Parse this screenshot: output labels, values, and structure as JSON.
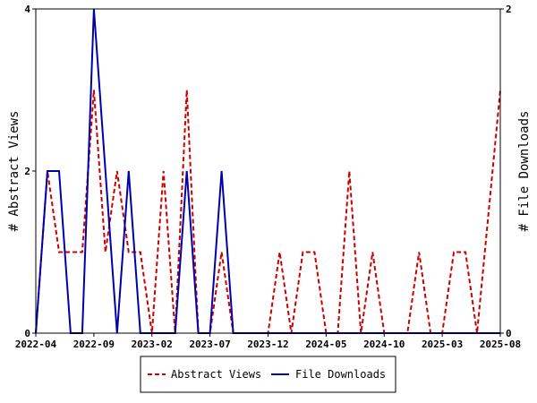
{
  "chart_data": {
    "type": "line",
    "x_tick_labels": [
      "2022-04",
      "2022-09",
      "2023-02",
      "2023-07",
      "2023-12",
      "2024-05",
      "2024-10",
      "2025-03",
      "2025-08"
    ],
    "left_axis": {
      "label": "# Abstract Views",
      "range": [
        0,
        4
      ],
      "ticks": [
        "0",
        "2",
        "4"
      ]
    },
    "right_axis": {
      "label": "# File Downloads",
      "range": [
        0,
        2
      ],
      "ticks": [
        "0",
        "2"
      ]
    },
    "grid": false,
    "legend_position": "bottom",
    "series": [
      {
        "name": "Abstract Views",
        "axis": "left",
        "color": "#cc0000",
        "dash": true,
        "points": [
          [
            "2022-04",
            0
          ],
          [
            "2022-05",
            2
          ],
          [
            "2022-06",
            1
          ],
          [
            "2022-07",
            1
          ],
          [
            "2022-08",
            1
          ],
          [
            "2022-09",
            3
          ],
          [
            "2022-10",
            1
          ],
          [
            "2022-11",
            2
          ],
          [
            "2022-12",
            1
          ],
          [
            "2023-01",
            1
          ],
          [
            "2023-02",
            0
          ],
          [
            "2023-03",
            2
          ],
          [
            "2023-04",
            0
          ],
          [
            "2023-05",
            3
          ],
          [
            "2023-06",
            0
          ],
          [
            "2023-07",
            0
          ],
          [
            "2023-08",
            1
          ],
          [
            "2023-09",
            0
          ],
          [
            "2023-10",
            0
          ],
          [
            "2023-11",
            0
          ],
          [
            "2023-12",
            0
          ],
          [
            "2024-01",
            1
          ],
          [
            "2024-02",
            0
          ],
          [
            "2024-03",
            1
          ],
          [
            "2024-04",
            1
          ],
          [
            "2024-05",
            0
          ],
          [
            "2024-06",
            0
          ],
          [
            "2024-07",
            2
          ],
          [
            "2024-08",
            0
          ],
          [
            "2024-09",
            1
          ],
          [
            "2024-10",
            0
          ],
          [
            "2024-11",
            0
          ],
          [
            "2024-12",
            0
          ],
          [
            "2025-01",
            1
          ],
          [
            "2025-02",
            0
          ],
          [
            "2025-03",
            0
          ],
          [
            "2025-04",
            1
          ],
          [
            "2025-05",
            1
          ],
          [
            "2025-06",
            0
          ],
          [
            "2025-08",
            3
          ]
        ]
      },
      {
        "name": "File Downloads",
        "axis": "right",
        "color": "#0000aa",
        "dash": false,
        "points": [
          [
            "2022-04",
            0
          ],
          [
            "2022-05",
            1
          ],
          [
            "2022-06",
            1
          ],
          [
            "2022-07",
            0
          ],
          [
            "2022-08",
            0
          ],
          [
            "2022-09",
            2
          ],
          [
            "2022-10",
            1
          ],
          [
            "2022-11",
            0
          ],
          [
            "2022-12",
            1
          ],
          [
            "2023-01",
            0
          ],
          [
            "2023-02",
            0
          ],
          [
            "2023-03",
            0
          ],
          [
            "2023-04",
            0
          ],
          [
            "2023-05",
            1
          ],
          [
            "2023-06",
            0
          ],
          [
            "2023-07",
            0
          ],
          [
            "2023-08",
            1
          ],
          [
            "2023-09",
            0
          ],
          [
            "2023-10",
            0
          ],
          [
            "2023-11",
            0
          ],
          [
            "2023-12",
            0
          ],
          [
            "2024-01",
            0
          ],
          [
            "2024-02",
            0
          ],
          [
            "2024-03",
            0
          ],
          [
            "2024-04",
            0
          ],
          [
            "2024-05",
            0
          ],
          [
            "2024-06",
            0
          ],
          [
            "2024-07",
            0
          ],
          [
            "2024-08",
            0
          ],
          [
            "2024-09",
            0
          ],
          [
            "2024-10",
            0
          ],
          [
            "2024-11",
            0
          ],
          [
            "2024-12",
            0
          ],
          [
            "2025-01",
            0
          ],
          [
            "2025-02",
            0
          ],
          [
            "2025-03",
            0
          ],
          [
            "2025-04",
            0
          ],
          [
            "2025-05",
            0
          ],
          [
            "2025-06",
            0
          ],
          [
            "2025-08",
            0
          ]
        ]
      }
    ]
  }
}
